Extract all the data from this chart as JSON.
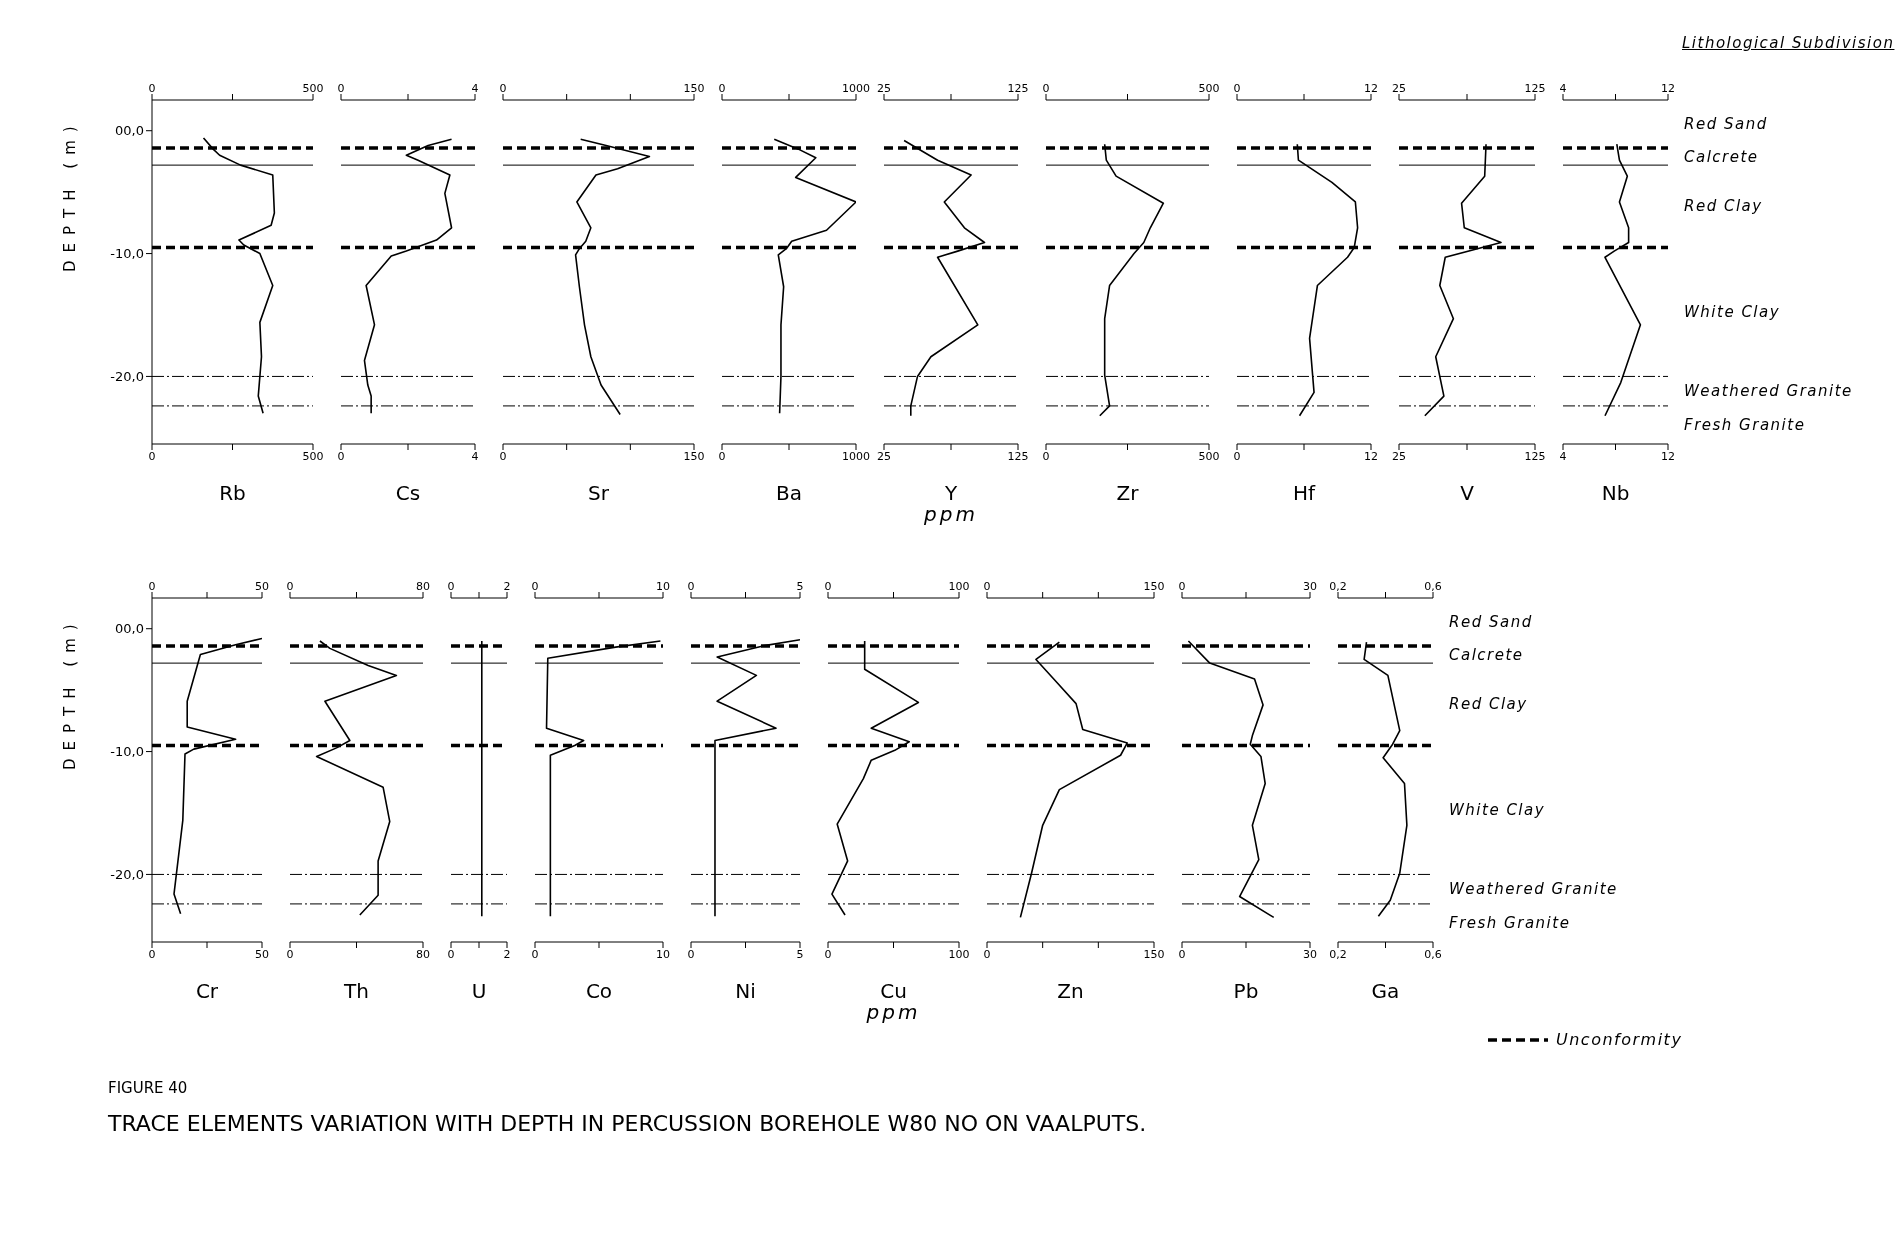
{
  "chart_data": [
    {
      "type": "line",
      "title": "TRACE ELEMENTS VARIATION WITH DEPTH IN PERCUSSION BOREHOLE W80 NO ON VAALPUTS.",
      "subtitle": "FIGURE 40",
      "xlabel": "Rb",
      "ylabel": "DEPTH (m)",
      "xlim": [
        0,
        500
      ],
      "xticks": [
        0,
        {
          "value": 250,
          "label": null
        },
        500
      ],
      "x2lim": [
        0,
        500
      ],
      "x2ticks": [
        0,
        {
          "value": 250,
          "label": null
        },
        500
      ],
      "ylim": [
        -25.5,
        2.5
      ],
      "yticks": [
        {
          "value": 0,
          "label": "00,0"
        },
        {
          "value": -10,
          "label": "-10,0"
        },
        {
          "value": -20,
          "label": "-20,0"
        }
      ],
      "ref_lines": [
        {
          "axis": "y",
          "value": -1.4,
          "line_style": "dashed",
          "color": "#000000"
        },
        {
          "axis": "y",
          "value": -2.8,
          "line_style": "solid",
          "color": "#000000"
        },
        {
          "axis": "y",
          "value": -9.5,
          "line_style": "dashed",
          "color": "#000000"
        },
        {
          "axis": "y",
          "value": -20,
          "line_style": "dotted",
          "color": "#000000"
        },
        {
          "axis": "y",
          "value": -22.4,
          "line_style": "dotted",
          "color": "#000000"
        }
      ],
      "series": [
        {
          "color": "#000000",
          "x": [
            160,
            190,
            210,
            275,
            375,
            380,
            370,
            270,
            285,
            335,
            375,
            335,
            340,
            335,
            330,
            345
          ],
          "values": [
            -0.6,
            -1.5,
            -2.0,
            -2.8,
            -3.6,
            -6.7,
            -7.7,
            -8.9,
            -9.3,
            -10.0,
            -12.6,
            -15.6,
            -18.4,
            -20.0,
            -21.6,
            -23.0
          ]
        }
      ]
    },
    {
      "type": "line",
      "xlabel": "Cs",
      "tick_labels": "x",
      "xlim": [
        0,
        4
      ],
      "xticks": [
        0,
        {
          "value": 2,
          "label": null
        },
        4
      ],
      "x2lim": [
        0,
        4
      ],
      "x2ticks": [
        0,
        {
          "value": 2,
          "label": null
        },
        4
      ],
      "ylim": [
        -25.5,
        2.5
      ],
      "ref_lines": [
        {
          "axis": "y",
          "value": -1.4,
          "line_style": "dashed",
          "color": "#000000"
        },
        {
          "axis": "y",
          "value": -2.8,
          "line_style": "solid",
          "color": "#000000"
        },
        {
          "axis": "y",
          "value": -9.5,
          "line_style": "dashed",
          "color": "#000000"
        },
        {
          "axis": "y",
          "value": -20,
          "line_style": "dotted",
          "color": "#000000"
        },
        {
          "axis": "y",
          "value": -22.4,
          "line_style": "dotted",
          "color": "#000000"
        }
      ],
      "series": [
        {
          "color": "#000000",
          "x": [
            3.3,
            2.6,
            1.95,
            2.3,
            3.25,
            3.1,
            3.3,
            2.85,
            1.95,
            1.5,
            0.75,
            1.0,
            0.7,
            0.8,
            0.9,
            0.9
          ],
          "values": [
            -0.7,
            -1.2,
            -2.0,
            -2.4,
            -3.6,
            -5.1,
            -7.9,
            -8.9,
            -9.8,
            -10.2,
            -12.6,
            -15.8,
            -18.7,
            -20.7,
            -21.6,
            -23.0
          ]
        }
      ]
    },
    {
      "type": "line",
      "xlabel": "Sr",
      "tick_labels": "x",
      "xlim": [
        0,
        150
      ],
      "xticks": [
        0,
        {
          "value": 50,
          "label": null
        },
        {
          "value": 100,
          "label": null
        },
        150
      ],
      "x2lim": [
        0,
        150
      ],
      "x2ticks": [
        0,
        {
          "value": 50,
          "label": null
        },
        {
          "value": 100,
          "label": null
        },
        150
      ],
      "ylim": [
        -25.5,
        2.5
      ],
      "ref_lines": [
        {
          "axis": "y",
          "value": -1.4,
          "line_style": "dashed",
          "color": "#000000"
        },
        {
          "axis": "y",
          "value": -2.8,
          "line_style": "solid",
          "color": "#000000"
        },
        {
          "axis": "y",
          "value": -9.5,
          "line_style": "dashed",
          "color": "#000000"
        },
        {
          "axis": "y",
          "value": -20,
          "line_style": "dotted",
          "color": "#000000"
        },
        {
          "axis": "y",
          "value": -22.4,
          "line_style": "dotted",
          "color": "#000000"
        }
      ],
      "series": [
        {
          "color": "#000000",
          "x": [
            61,
            81,
            115,
            90,
            73,
            58,
            69,
            65,
            60,
            57,
            60,
            64,
            69,
            77,
            92
          ],
          "values": [
            -0.7,
            -1.2,
            -2.1,
            -3.1,
            -3.6,
            -5.8,
            -7.9,
            -9.0,
            -9.6,
            -10.1,
            -12.7,
            -15.8,
            -18.4,
            -20.7,
            -23.1
          ]
        }
      ]
    },
    {
      "type": "line",
      "xlabel": "Ba",
      "tick_labels": "x",
      "xlim": [
        0,
        1000
      ],
      "xticks": [
        0,
        {
          "value": 500,
          "label": null
        },
        1000
      ],
      "x2lim": [
        0,
        1000
      ],
      "x2ticks": [
        0,
        {
          "value": 500,
          "label": null
        },
        1000
      ],
      "ylim": [
        -25.5,
        2.5
      ],
      "ref_lines": [
        {
          "axis": "y",
          "value": -1.4,
          "line_style": "dashed",
          "color": "#000000"
        },
        {
          "axis": "y",
          "value": -2.8,
          "line_style": "solid",
          "color": "#000000"
        },
        {
          "axis": "y",
          "value": -9.5,
          "line_style": "dashed",
          "color": "#000000"
        },
        {
          "axis": "y",
          "value": -20,
          "line_style": "dotted",
          "color": "#000000"
        },
        {
          "axis": "y",
          "value": -22.4,
          "line_style": "dotted",
          "color": "#000000"
        }
      ],
      "series": [
        {
          "color": "#000000",
          "x": [
            390,
            570,
            700,
            550,
            1000,
            780,
            520,
            480,
            420,
            460,
            440,
            440,
            430
          ],
          "values": [
            -0.7,
            -1.5,
            -2.2,
            -3.8,
            -5.8,
            -8.1,
            -9.0,
            -9.6,
            -10.1,
            -12.7,
            -15.8,
            -20.0,
            -23.0
          ]
        }
      ]
    },
    {
      "type": "line",
      "xlabel": "Y",
      "annotations": [
        "ppm"
      ],
      "tick_labels": "x",
      "xlim": [
        25,
        125
      ],
      "xticks": [
        25,
        {
          "value": 75,
          "label": null
        },
        125
      ],
      "x2lim": [
        25,
        125
      ],
      "x2ticks": [
        25,
        {
          "value": 75,
          "label": null
        },
        125
      ],
      "ylim": [
        -25.5,
        2.5
      ],
      "ref_lines": [
        {
          "axis": "y",
          "value": -1.4,
          "line_style": "dashed",
          "color": "#000000"
        },
        {
          "axis": "y",
          "value": -2.8,
          "line_style": "solid",
          "color": "#000000"
        },
        {
          "axis": "y",
          "value": -9.5,
          "line_style": "dashed",
          "color": "#000000"
        },
        {
          "axis": "y",
          "value": -20,
          "line_style": "dotted",
          "color": "#000000"
        },
        {
          "axis": "y",
          "value": -22.4,
          "line_style": "dotted",
          "color": "#000000"
        }
      ],
      "series": [
        {
          "color": "#000000",
          "x": [
            40,
            65,
            90,
            70,
            85,
            100,
            80,
            65,
            95,
            60,
            50,
            45,
            45
          ],
          "values": [
            -0.8,
            -2.4,
            -3.6,
            -5.8,
            -7.9,
            -9.1,
            -9.8,
            -10.3,
            -15.8,
            -18.4,
            -20.0,
            -22.4,
            -23.2
          ]
        }
      ]
    },
    {
      "type": "line",
      "xlabel": "Zr",
      "tick_labels": "x",
      "xlim": [
        0,
        500
      ],
      "xticks": [
        0,
        {
          "value": 250,
          "label": null
        },
        500
      ],
      "x2lim": [
        0,
        500
      ],
      "x2ticks": [
        0,
        {
          "value": 250,
          "label": null
        },
        500
      ],
      "ylim": [
        -25.5,
        2.5
      ],
      "ref_lines": [
        {
          "axis": "y",
          "value": -1.4,
          "line_style": "dashed",
          "color": "#000000"
        },
        {
          "axis": "y",
          "value": -2.8,
          "line_style": "solid",
          "color": "#000000"
        },
        {
          "axis": "y",
          "value": -9.5,
          "line_style": "dashed",
          "color": "#000000"
        },
        {
          "axis": "y",
          "value": -20,
          "line_style": "dotted",
          "color": "#000000"
        },
        {
          "axis": "y",
          "value": -22.4,
          "line_style": "dotted",
          "color": "#000000"
        }
      ],
      "series": [
        {
          "color": "#000000",
          "x": [
            180,
            185,
            215,
            360,
            320,
            300,
            270,
            195,
            180,
            180,
            195,
            165
          ],
          "values": [
            -1.1,
            -2.4,
            -3.7,
            -5.9,
            -7.9,
            -9.1,
            -10.0,
            -12.6,
            -15.3,
            -19.9,
            -22.4,
            -23.2
          ]
        }
      ]
    },
    {
      "type": "line",
      "xlabel": "Hf",
      "tick_labels": "x",
      "xlim": [
        0,
        12
      ],
      "xticks": [
        0,
        {
          "value": 6,
          "label": null
        },
        12
      ],
      "x2lim": [
        0,
        12
      ],
      "x2ticks": [
        0,
        {
          "value": 6,
          "label": null
        },
        12
      ],
      "ylim": [
        -25.5,
        2.5
      ],
      "ref_lines": [
        {
          "axis": "y",
          "value": -1.4,
          "line_style": "dashed",
          "color": "#000000"
        },
        {
          "axis": "y",
          "value": -2.8,
          "line_style": "solid",
          "color": "#000000"
        },
        {
          "axis": "y",
          "value": -9.5,
          "line_style": "dashed",
          "color": "#000000"
        },
        {
          "axis": "y",
          "value": -20,
          "line_style": "dotted",
          "color": "#000000"
        },
        {
          "axis": "y",
          "value": -22.4,
          "line_style": "dotted",
          "color": "#000000"
        }
      ],
      "series": [
        {
          "color": "#000000",
          "x": [
            5.4,
            5.5,
            8.5,
            10.6,
            10.8,
            10.5,
            9.9,
            7.2,
            6.5,
            6.9,
            5.6
          ],
          "values": [
            -1.1,
            -2.4,
            -4.2,
            -5.8,
            -7.9,
            -9.5,
            -10.3,
            -12.6,
            -16.9,
            -21.3,
            -23.2
          ]
        }
      ]
    },
    {
      "type": "line",
      "xlabel": "V",
      "tick_labels": "x",
      "xlim": [
        25,
        125
      ],
      "xticks": [
        25,
        {
          "value": 75,
          "label": null
        },
        125
      ],
      "x2lim": [
        25,
        125
      ],
      "x2ticks": [
        25,
        {
          "value": 75,
          "label": null
        },
        125
      ],
      "ylim": [
        -25.5,
        2.5
      ],
      "ref_lines": [
        {
          "axis": "y",
          "value": -1.4,
          "line_style": "dashed",
          "color": "#000000"
        },
        {
          "axis": "y",
          "value": -2.8,
          "line_style": "solid",
          "color": "#000000"
        },
        {
          "axis": "y",
          "value": -9.5,
          "line_style": "dashed",
          "color": "#000000"
        },
        {
          "axis": "y",
          "value": -20,
          "line_style": "dotted",
          "color": "#000000"
        },
        {
          "axis": "y",
          "value": -22.4,
          "line_style": "dotted",
          "color": "#000000"
        }
      ],
      "series": [
        {
          "color": "#000000",
          "x": [
            89,
            88,
            71,
            73,
            100,
            59,
            55,
            65,
            52,
            58,
            44
          ],
          "values": [
            -1.1,
            -3.7,
            -5.9,
            -7.9,
            -9.1,
            -10.3,
            -12.6,
            -15.3,
            -18.4,
            -21.6,
            -23.2
          ]
        }
      ]
    },
    {
      "type": "line",
      "xlabel": "Nb",
      "legend_title": "Lithological Subdivision",
      "annotations": [
        "Red Sand",
        "Calcrete",
        "Red Clay",
        "White Clay",
        "Weathered Granite",
        "Fresh Granite"
      ],
      "tick_labels": "x",
      "xlim": [
        4,
        12
      ],
      "xticks": [
        4,
        {
          "value": 8,
          "label": null
        },
        12
      ],
      "x2lim": [
        4,
        12
      ],
      "x2ticks": [
        4,
        {
          "value": 8,
          "label": null
        },
        12
      ],
      "ylim": [
        -25.5,
        2.5
      ],
      "ref_lines": [
        {
          "axis": "y",
          "value": -1.4,
          "line_style": "dashed",
          "color": "#000000"
        },
        {
          "axis": "y",
          "value": -2.8,
          "line_style": "solid",
          "color": "#000000"
        },
        {
          "axis": "y",
          "value": -9.5,
          "line_style": "dashed",
          "color": "#000000"
        },
        {
          "axis": "y",
          "value": -20,
          "line_style": "dotted",
          "color": "#000000"
        },
        {
          "axis": "y",
          "value": -22.4,
          "line_style": "dotted",
          "color": "#000000"
        }
      ],
      "series": [
        {
          "color": "#000000",
          "x": [
            8.1,
            8.3,
            8.9,
            8.3,
            9.0,
            9.0,
            7.9,
            7.2,
            9.9,
            8.4,
            7.2
          ],
          "values": [
            -1.1,
            -2.4,
            -3.7,
            -5.8,
            -7.9,
            -9.1,
            -9.8,
            -10.3,
            -15.8,
            -20.5,
            -23.2
          ]
        }
      ]
    },
    {
      "type": "line",
      "xlabel": "Cr",
      "ylabel": "DEPTH (m)",
      "xlim": [
        0,
        50
      ],
      "xticks": [
        0,
        {
          "value": 25,
          "label": null
        },
        50
      ],
      "x2lim": [
        0,
        50
      ],
      "x2ticks": [
        0,
        {
          "value": 25,
          "label": null
        },
        50
      ],
      "ylim": [
        -25.5,
        2.5
      ],
      "yticks": [
        {
          "value": 0,
          "label": "00,0"
        },
        {
          "value": -10,
          "label": "-10,0"
        },
        {
          "value": -20,
          "label": "-20,0"
        }
      ],
      "ref_lines": [
        {
          "axis": "y",
          "value": -1.4,
          "line_style": "dashed",
          "color": "#000000"
        },
        {
          "axis": "y",
          "value": -2.8,
          "line_style": "solid",
          "color": "#000000"
        },
        {
          "axis": "y",
          "value": -9.5,
          "line_style": "dashed",
          "color": "#000000"
        },
        {
          "axis": "y",
          "value": -20,
          "line_style": "dotted",
          "color": "#000000"
        },
        {
          "axis": "y",
          "value": -22.4,
          "line_style": "dotted",
          "color": "#000000"
        }
      ],
      "series": [
        {
          "color": "#000000",
          "x": [
            50,
            38,
            22,
            16,
            16,
            38,
            19,
            15,
            14,
            10,
            13
          ],
          "values": [
            -0.8,
            -1.3,
            -2.1,
            -5.9,
            -8.0,
            -9.0,
            -9.8,
            -10.2,
            -15.6,
            -21.6,
            -23.2
          ]
        }
      ]
    },
    {
      "type": "line",
      "xlabel": "Th",
      "tick_labels": "x",
      "xlim": [
        0,
        80
      ],
      "xticks": [
        0,
        {
          "value": 40,
          "label": null
        },
        80
      ],
      "x2lim": [
        0,
        80
      ],
      "x2ticks": [
        0,
        {
          "value": 40,
          "label": null
        },
        80
      ],
      "ylim": [
        -25.5,
        2.5
      ],
      "ref_lines": [
        {
          "axis": "y",
          "value": -1.4,
          "line_style": "dashed",
          "color": "#000000"
        },
        {
          "axis": "y",
          "value": -2.8,
          "line_style": "solid",
          "color": "#000000"
        },
        {
          "axis": "y",
          "value": -9.5,
          "line_style": "dashed",
          "color": "#000000"
        },
        {
          "axis": "y",
          "value": -20,
          "line_style": "dotted",
          "color": "#000000"
        },
        {
          "axis": "y",
          "value": -22.4,
          "line_style": "dotted",
          "color": "#000000"
        }
      ],
      "series": [
        {
          "color": "#000000",
          "x": [
            18,
            24,
            47,
            64,
            21,
            36,
            28,
            16,
            56,
            60,
            53,
            53,
            42
          ],
          "values": [
            -1.0,
            -1.6,
            -3.0,
            -3.8,
            -5.9,
            -9.1,
            -9.7,
            -10.4,
            -12.9,
            -15.7,
            -18.9,
            -21.7,
            -23.3
          ]
        }
      ]
    },
    {
      "type": "line",
      "xlabel": "U",
      "tick_labels": "x",
      "xlim": [
        0,
        2
      ],
      "xticks": [
        0,
        {
          "value": 1,
          "label": null
        },
        2
      ],
      "x2lim": [
        0,
        2
      ],
      "x2ticks": [
        0,
        {
          "value": 1,
          "label": null
        },
        2
      ],
      "ylim": [
        -25.5,
        2.5
      ],
      "ref_lines": [
        {
          "axis": "y",
          "value": -1.4,
          "line_style": "dashed",
          "color": "#000000"
        },
        {
          "axis": "y",
          "value": -2.8,
          "line_style": "solid",
          "color": "#000000"
        },
        {
          "axis": "y",
          "value": -9.5,
          "line_style": "dashed",
          "color": "#000000"
        },
        {
          "axis": "y",
          "value": -20,
          "line_style": "dotted",
          "color": "#000000"
        },
        {
          "axis": "y",
          "value": -22.4,
          "line_style": "dotted",
          "color": "#000000"
        }
      ],
      "series": [
        {
          "color": "#000000",
          "x": [
            1.1,
            1.1
          ],
          "values": [
            -1.0,
            -23.4
          ]
        }
      ]
    },
    {
      "type": "line",
      "xlabel": "Co",
      "tick_labels": "x",
      "xlim": [
        0,
        10
      ],
      "xticks": [
        0,
        {
          "value": 5,
          "label": null
        },
        10
      ],
      "x2lim": [
        0,
        10
      ],
      "x2ticks": [
        0,
        {
          "value": 5,
          "label": null
        },
        10
      ],
      "ylim": [
        -25.5,
        2.5
      ],
      "ref_lines": [
        {
          "axis": "y",
          "value": -1.4,
          "line_style": "dashed",
          "color": "#000000"
        },
        {
          "axis": "y",
          "value": -2.8,
          "line_style": "solid",
          "color": "#000000"
        },
        {
          "axis": "y",
          "value": -9.5,
          "line_style": "dashed",
          "color": "#000000"
        },
        {
          "axis": "y",
          "value": -20,
          "line_style": "dotted",
          "color": "#000000"
        },
        {
          "axis": "y",
          "value": -22.4,
          "line_style": "dotted",
          "color": "#000000"
        }
      ],
      "series": [
        {
          "color": "#000000",
          "x": [
            9.8,
            6.3,
            1.0,
            0.9,
            3.8,
            3.1,
            1.2,
            1.2
          ],
          "values": [
            -1.0,
            -1.5,
            -2.4,
            -8.1,
            -9.1,
            -9.5,
            -10.3,
            -23.4
          ]
        }
      ]
    },
    {
      "type": "line",
      "xlabel": "Ni",
      "tick_labels": "x",
      "xlim": [
        0,
        5
      ],
      "xticks": [
        0,
        {
          "value": 2.5,
          "label": null
        },
        5
      ],
      "x2lim": [
        0,
        5
      ],
      "x2ticks": [
        0,
        {
          "value": 2.5,
          "label": null
        },
        5
      ],
      "ylim": [
        -25.5,
        2.5
      ],
      "ref_lines": [
        {
          "axis": "y",
          "value": -1.4,
          "line_style": "dashed",
          "color": "#000000"
        },
        {
          "axis": "y",
          "value": -2.8,
          "line_style": "solid",
          "color": "#000000"
        },
        {
          "axis": "y",
          "value": -9.5,
          "line_style": "dashed",
          "color": "#000000"
        },
        {
          "axis": "y",
          "value": -20,
          "line_style": "dotted",
          "color": "#000000"
        },
        {
          "axis": "y",
          "value": -22.4,
          "line_style": "dotted",
          "color": "#000000"
        }
      ],
      "series": [
        {
          "color": "#000000",
          "x": [
            5.0,
            3.3,
            1.2,
            3.0,
            1.2,
            3.9,
            1.1,
            1.1
          ],
          "values": [
            -0.9,
            -1.4,
            -2.3,
            -3.8,
            -5.9,
            -8.1,
            -9.1,
            -23.4
          ]
        }
      ]
    },
    {
      "type": "line",
      "xlabel": "Cu",
      "annotations": [
        "ppm"
      ],
      "tick_labels": "x",
      "xlim": [
        0,
        100
      ],
      "xticks": [
        0,
        {
          "value": 50,
          "label": null
        },
        100
      ],
      "x2lim": [
        0,
        100
      ],
      "x2ticks": [
        0,
        {
          "value": 50,
          "label": null
        },
        100
      ],
      "ylim": [
        -25.5,
        2.5
      ],
      "ref_lines": [
        {
          "axis": "y",
          "value": -1.4,
          "line_style": "dashed",
          "color": "#000000"
        },
        {
          "axis": "y",
          "value": -2.8,
          "line_style": "solid",
          "color": "#000000"
        },
        {
          "axis": "y",
          "value": -9.5,
          "line_style": "dashed",
          "color": "#000000"
        },
        {
          "axis": "y",
          "value": -20,
          "line_style": "dotted",
          "color": "#000000"
        },
        {
          "axis": "y",
          "value": -22.4,
          "line_style": "dotted",
          "color": "#000000"
        }
      ],
      "series": [
        {
          "color": "#000000",
          "x": [
            28,
            28,
            69,
            33,
            62,
            51,
            33,
            27,
            7,
            15,
            3,
            13
          ],
          "values": [
            -1.0,
            -3.3,
            -6.0,
            -8.1,
            -9.2,
            -9.9,
            -10.7,
            -12.2,
            -15.9,
            -18.9,
            -21.6,
            -23.3
          ]
        }
      ]
    },
    {
      "type": "line",
      "xlabel": "Zn",
      "tick_labels": "x",
      "xlim": [
        0,
        150
      ],
      "xticks": [
        0,
        {
          "value": 50,
          "label": null
        },
        {
          "value": 100,
          "label": null
        },
        150
      ],
      "x2lim": [
        0,
        150
      ],
      "x2ticks": [
        0,
        {
          "value": 50,
          "label": null
        },
        {
          "value": 100,
          "label": null
        },
        150
      ],
      "ylim": [
        -25.5,
        2.5
      ],
      "ref_lines": [
        {
          "axis": "y",
          "value": -1.4,
          "line_style": "dashed",
          "color": "#000000"
        },
        {
          "axis": "y",
          "value": -2.8,
          "line_style": "solid",
          "color": "#000000"
        },
        {
          "axis": "y",
          "value": -9.5,
          "line_style": "dashed",
          "color": "#000000"
        },
        {
          "axis": "y",
          "value": -20,
          "line_style": "dotted",
          "color": "#000000"
        },
        {
          "axis": "y",
          "value": -22.4,
          "line_style": "dotted",
          "color": "#000000"
        }
      ],
      "series": [
        {
          "color": "#000000",
          "x": [
            65,
            44,
            62,
            80,
            86,
            126,
            120,
            65,
            50,
            40,
            30
          ],
          "values": [
            -1.1,
            -2.5,
            -4.3,
            -6.1,
            -8.2,
            -9.3,
            -10.3,
            -13.1,
            -16.0,
            -19.9,
            -23.5
          ]
        }
      ]
    },
    {
      "type": "line",
      "xlabel": "Pb",
      "tick_labels": "x",
      "xlim": [
        0,
        30
      ],
      "xticks": [
        0,
        {
          "value": 15,
          "label": null
        },
        30
      ],
      "x2lim": [
        0,
        30
      ],
      "x2ticks": [
        0,
        {
          "value": 15,
          "label": null
        },
        30
      ],
      "ylim": [
        -25.5,
        2.5
      ],
      "ref_lines": [
        {
          "axis": "y",
          "value": -1.4,
          "line_style": "dashed",
          "color": "#000000"
        },
        {
          "axis": "y",
          "value": -2.8,
          "line_style": "solid",
          "color": "#000000"
        },
        {
          "axis": "y",
          "value": -9.5,
          "line_style": "dashed",
          "color": "#000000"
        },
        {
          "axis": "y",
          "value": -20,
          "line_style": "dotted",
          "color": "#000000"
        },
        {
          "axis": "y",
          "value": -22.4,
          "line_style": "dotted",
          "color": "#000000"
        }
      ],
      "series": [
        {
          "color": "#000000",
          "x": [
            1.5,
            6.5,
            17,
            19,
            16.5,
            16,
            18.5,
            19.5,
            16.5,
            18,
            13.5,
            21.5
          ],
          "values": [
            -1.0,
            -2.8,
            -4.1,
            -6.2,
            -8.7,
            -9.4,
            -10.4,
            -12.6,
            -16.0,
            -18.8,
            -21.8,
            -23.5
          ]
        }
      ]
    },
    {
      "type": "line",
      "xlabel": "Ga",
      "annotations": [
        "Red Sand",
        "Calcrete",
        "Red Clay",
        "White Clay",
        "Weathered Granite",
        "Fresh Granite"
      ],
      "tick_labels": "x",
      "xlim": [
        0.2,
        0.6
      ],
      "xticks": [
        {
          "value": 0.2,
          "label": "0,2"
        },
        {
          "value": 0.4,
          "label": null
        },
        {
          "value": 0.6,
          "label": "0,6"
        }
      ],
      "x2lim": [
        0.2,
        0.6
      ],
      "x2ticks": [
        {
          "value": 0.2,
          "label": "0,2"
        },
        {
          "value": 0.4,
          "label": null
        },
        {
          "value": 0.6,
          "label": "0,6"
        }
      ],
      "ylim": [
        -25.5,
        2.5
      ],
      "ref_lines": [
        {
          "axis": "y",
          "value": -1.4,
          "line_style": "dashed",
          "color": "#000000",
          "label": "Unconformity"
        },
        {
          "axis": "y",
          "value": -2.8,
          "line_style": "solid",
          "color": "#000000"
        },
        {
          "axis": "y",
          "value": -9.5,
          "line_style": "dashed",
          "color": "#000000"
        },
        {
          "axis": "y",
          "value": -20,
          "line_style": "dotted",
          "color": "#000000"
        },
        {
          "axis": "y",
          "value": -22.4,
          "line_style": "dotted",
          "color": "#000000"
        }
      ],
      "series": [
        {
          "color": "#000000",
          "x": [
            0.32,
            0.31,
            0.41,
            0.46,
            0.43,
            0.39,
            0.48,
            0.49,
            0.46,
            0.42,
            0.37
          ],
          "values": [
            -1.1,
            -2.5,
            -3.8,
            -8.3,
            -9.4,
            -10.5,
            -12.6,
            -16.0,
            -19.9,
            -22.1,
            -23.4
          ]
        }
      ]
    }
  ]
}
